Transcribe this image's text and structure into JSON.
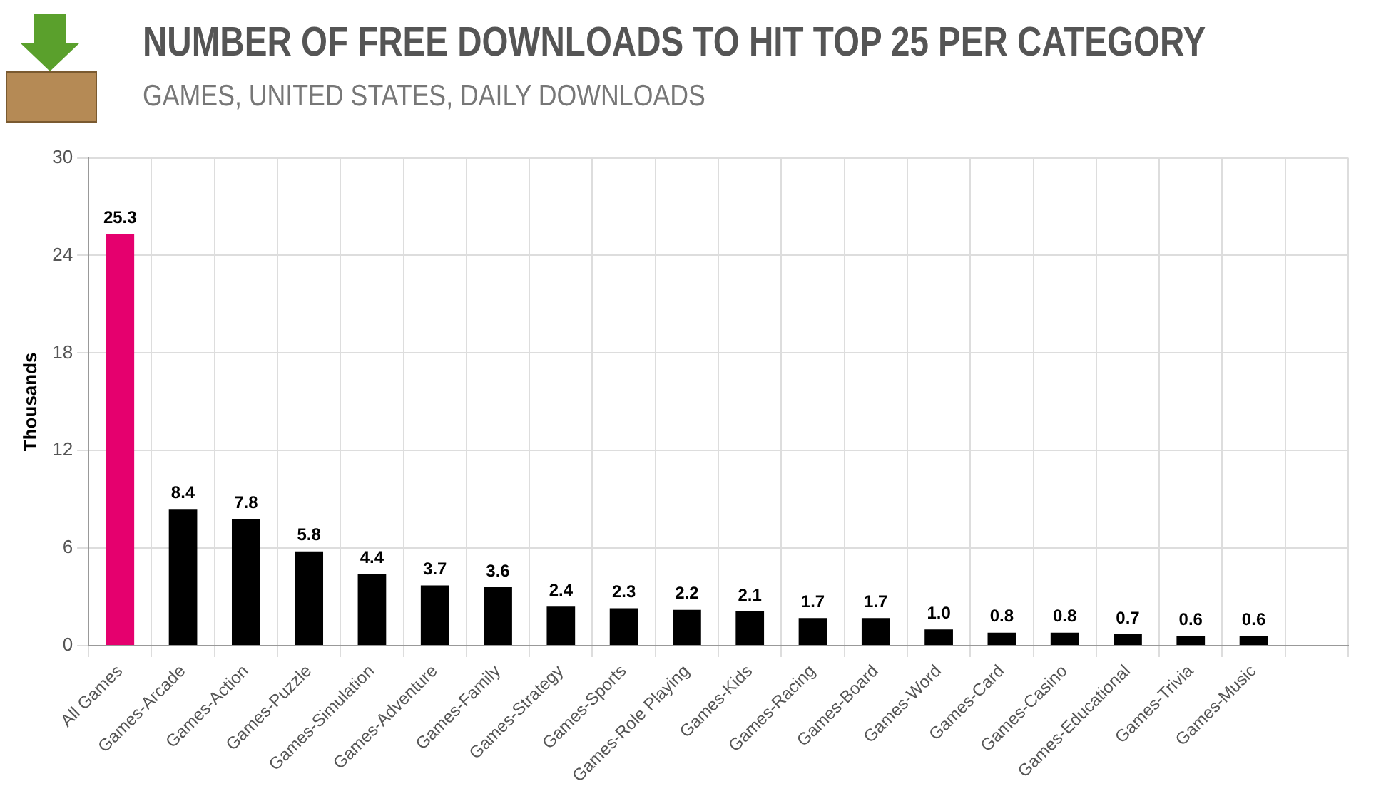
{
  "chart_data": {
    "type": "bar",
    "title": "NUMBER OF FREE DOWNLOADS TO HIT TOP 25 PER CATEGORY",
    "subtitle": "GAMES, UNITED STATES, DAILY DOWNLOADS",
    "ylabel": "Thousands",
    "categories": [
      "All Games",
      "Games-Arcade",
      "Games-Action",
      "Games-Puzzle",
      "Games-Simulation",
      "Games-Adventure",
      "Games-Family",
      "Games-Strategy",
      "Games-Sports",
      "Games-Role Playing",
      "Games-Kids",
      "Games-Racing",
      "Games-Board",
      "Games-Word",
      "Games-Card",
      "Games-Casino",
      "Games-Educational",
      "Games-Trivia",
      "Games-Music",
      null
    ],
    "values": [
      25.3,
      8.4,
      7.8,
      5.8,
      4.4,
      3.7,
      3.6,
      2.4,
      2.3,
      2.2,
      2.1,
      1.7,
      1.7,
      1.0,
      0.8,
      0.8,
      0.7,
      0.6,
      0.6,
      null
    ],
    "value_labels": [
      "25.3",
      "8.4",
      "7.8",
      "5.8",
      "4.4",
      "3.7",
      "3.6",
      "2.4",
      "2.3",
      "2.2",
      "2.1",
      "1.7",
      "1.7",
      "1.0",
      "0.8",
      "0.8",
      "0.7",
      "0.6",
      "0.6",
      null
    ],
    "colors": [
      "#e5006e",
      "#000000",
      "#000000",
      "#000000",
      "#000000",
      "#000000",
      "#000000",
      "#000000",
      "#000000",
      "#000000",
      "#000000",
      "#000000",
      "#000000",
      "#000000",
      "#000000",
      "#000000",
      "#000000",
      "#000000",
      "#000000",
      "#000000"
    ],
    "ylim": [
      0,
      30
    ],
    "yticks": [
      0,
      6,
      12,
      18,
      24,
      30
    ],
    "grid": true,
    "legend": false
  }
}
